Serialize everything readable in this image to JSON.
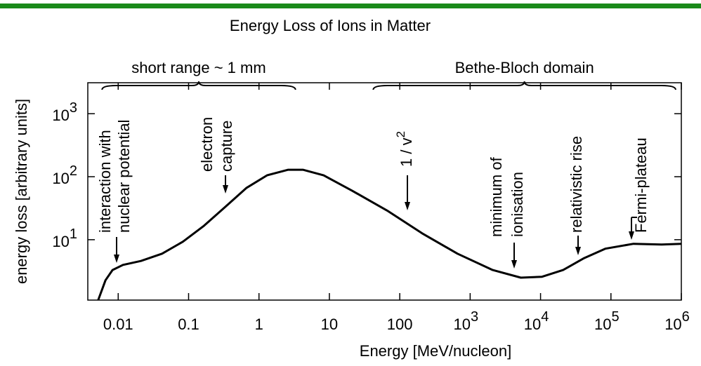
{
  "chart_data": {
    "type": "line",
    "title": "Energy Loss of Ions in Matter",
    "x_label": "Energy [MeV/nucleon]",
    "y_label": "energy loss [arbitrary units]",
    "log_x": true,
    "log_y": true,
    "grid": false,
    "color": "#000000",
    "x": [
      0.0052,
      0.0066,
      0.0083,
      0.0117,
      0.021,
      0.042,
      0.083,
      0.166,
      0.33,
      0.66,
      1.3,
      2.6,
      4.2,
      8.3,
      21,
      66,
      208,
      660,
      2090,
      5250,
      10500,
      20900,
      41700,
      83000,
      209000,
      525000,
      1000000
    ],
    "values": [
      1.1,
      2.27,
      3.3,
      3.98,
      4.6,
      6.0,
      9.3,
      16.7,
      33,
      66,
      105,
      129,
      129,
      105,
      60,
      29,
      12.6,
      6.0,
      3.3,
      2.5,
      2.58,
      3.3,
      5.1,
      7.2,
      8.6,
      8.4,
      8.6
    ],
    "xlim": [
      0.0037,
      1000000
    ],
    "ylim": [
      1.1,
      3100
    ],
    "xticks": [
      0.01,
      0.1,
      1,
      10,
      100,
      {
        "value": 1000,
        "label": "10",
        "exponent": "3"
      },
      {
        "value": 10000,
        "label": "10",
        "exponent": "4"
      },
      {
        "value": 100000,
        "label": "10",
        "exponent": "5"
      },
      {
        "value": 1000000,
        "label": "10",
        "exponent": "6"
      }
    ],
    "yticks": [
      {
        "value": 10,
        "label": "10",
        "exponent": "1"
      },
      {
        "value": 100,
        "label": "10",
        "exponent": "2"
      },
      {
        "value": 1000,
        "label": "10",
        "exponent": "3"
      }
    ],
    "ranges": [
      {
        "label": "short range ~ 1 mm",
        "from": 0.0059,
        "to": 3.3
      },
      {
        "label": "Bethe-Bloch domain",
        "from": 42,
        "to": 830000
      }
    ],
    "annotations": [
      {
        "lines": [
          "interaction with",
          "nuclear potential"
        ]
      },
      {
        "lines": [
          "electron",
          "capture"
        ]
      },
      {
        "lines": [
          "1 / v"
        ],
        "superscript": "2"
      },
      {
        "lines": [
          "minimum of",
          "ionisation"
        ]
      },
      {
        "lines": [
          "relativistic rise"
        ]
      },
      {
        "lines": [
          "Fermi-plateau"
        ]
      }
    ]
  }
}
